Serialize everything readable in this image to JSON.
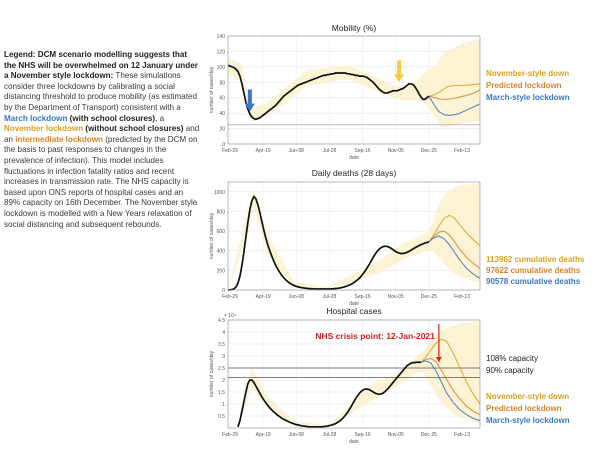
{
  "legend": {
    "label": "Legend:",
    "headline": "DCM scenario modelling suggests that the NHS will be overwhelmed on 12 January under a November style lockdown:",
    "p1": "These simulations consider three lockdowns by calibrating a social distancing threshold to produce mobility (as estimated by the Department of Transport) consistent with a",
    "march_label": "March lockdown",
    "march_note": "(with school closures)",
    "sep": ", a",
    "nov_label": "November lockdown",
    "nov_note": "(without school closures)",
    "and_an": "and an",
    "int_label": "intermediate lockdown",
    "p2": "(predicted by the DCM on the basis to past responses to changes in the prevalence of infection). This model includes fluctuations in infection fatality ratios and recent increases in transmission rate. The NHS capacity is based upon ONS reports of hospital cases and an 89% capacity on 16th December. The November style lockdown is modelled with a New Years relaxation of social distancing and subsequent rebounds."
  },
  "colors": {
    "march": "#3a78c0",
    "november": "#d8a21e",
    "predicted": "#d9822b",
    "data": "#111111",
    "band": "#fbf0cc",
    "cap_line": "#555555",
    "crisis": "#d42020"
  },
  "chart_data": [
    {
      "type": "line",
      "id": "mobility",
      "title": "Mobility (%)",
      "xlabel": "date",
      "ylabel": "number of cases/day",
      "x_ticks": [
        "Feb-29",
        "Apr-19",
        "Jun-08",
        "Jul-28",
        "Sep-16",
        "Nov-05",
        "Dec-25",
        "Feb-13"
      ],
      "ylim": [
        0,
        140
      ],
      "y_ticks": [
        0,
        20,
        40,
        60,
        80,
        100,
        120,
        140
      ],
      "observed": {
        "x": [
          0,
          3,
          6,
          9,
          12,
          15,
          18,
          21,
          24,
          27,
          30,
          33,
          36,
          39,
          42,
          45,
          48,
          51,
          54,
          57,
          60,
          63,
          66,
          69,
          72,
          75,
          78,
          81,
          84,
          87,
          90,
          93,
          96,
          99,
          102,
          105,
          108,
          111,
          114,
          117,
          120,
          123,
          126,
          129,
          132,
          135,
          138,
          141,
          144,
          147,
          150,
          153,
          156,
          159,
          162,
          165,
          168,
          171,
          174,
          177,
          180,
          183,
          186,
          189,
          192,
          195,
          198,
          201,
          204,
          207,
          210,
          213,
          216,
          219,
          222,
          225,
          228,
          231,
          234,
          237,
          240,
          243,
          246,
          249,
          252,
          255,
          258,
          261,
          264,
          267,
          270,
          273,
          276,
          279,
          282,
          285,
          288,
          291,
          294,
          297,
          300,
          303
        ],
        "y": [
          102,
          101,
          100,
          99,
          97,
          94,
          88,
          78,
          66,
          54,
          45,
          39,
          35,
          33,
          32,
          33,
          34,
          36,
          38,
          40,
          42,
          44,
          46,
          48,
          50,
          53,
          56,
          59,
          62,
          64,
          66,
          68,
          70,
          72,
          74,
          76,
          77,
          78,
          79,
          80,
          81,
          82,
          83,
          84,
          85,
          86,
          87,
          88,
          89,
          89,
          90,
          90,
          91,
          91,
          92,
          92,
          92,
          92,
          92,
          92,
          91,
          91,
          90,
          90,
          89,
          89,
          88,
          88,
          88,
          87,
          86,
          84,
          82,
          80,
          77,
          74,
          71,
          69,
          67,
          66,
          66,
          67,
          68,
          69,
          69,
          69,
          70,
          71,
          72,
          74,
          76,
          78,
          78,
          77,
          74,
          70,
          65,
          61,
          58,
          58,
          60,
          62
        ]
      },
      "band": {
        "x": [
          0,
          20,
          35,
          60,
          120,
          180,
          250,
          265,
          290,
          300,
          315,
          320,
          330,
          340,
          360,
          380
        ],
        "lower": [
          92,
          80,
          28,
          36,
          76,
          84,
          60,
          56,
          56,
          50,
          32,
          22,
          22,
          24,
          28,
          30
        ],
        "upper": [
          112,
          104,
          46,
          54,
          96,
          102,
          76,
          74,
          86,
          96,
          102,
          112,
          120,
          124,
          132,
          136
        ]
      },
      "scenarios": [
        {
          "name": "November-style down",
          "color": "#d8a21e",
          "x": [
            303,
            312,
            320,
            330,
            340,
            350,
            360,
            370,
            380
          ],
          "y": [
            62,
            64,
            68,
            74,
            76,
            76,
            76,
            77,
            78
          ]
        },
        {
          "name": "Predicted lockdown",
          "color": "#d9822b",
          "x": [
            303,
            312,
            320,
            330,
            340,
            350,
            360,
            370,
            380
          ],
          "y": [
            62,
            60,
            58,
            58,
            59,
            61,
            63,
            66,
            70
          ]
        },
        {
          "name": "March-style lockdown",
          "color": "#3a78c0",
          "x": [
            303,
            310,
            318,
            326,
            334,
            342,
            350,
            360,
            370,
            380
          ],
          "y": [
            62,
            52,
            42,
            38,
            37,
            38,
            40,
            44,
            48,
            52
          ]
        }
      ],
      "ref_lines": [
        {
          "y": 25,
          "color": "#aaaaaa"
        }
      ]
    },
    {
      "type": "line",
      "id": "deaths",
      "title": "Daily deaths (28 days)",
      "xlabel": "date",
      "ylabel": "number of cases/day",
      "x_ticks": [
        "Feb-29",
        "Apr-19",
        "Jun-08",
        "Jul-28",
        "Sep-16",
        "Nov-05",
        "Dec-25",
        "Feb-13"
      ],
      "ylim": [
        0,
        1100
      ],
      "y_ticks": [
        0,
        200,
        400,
        600,
        800,
        1000
      ],
      "observed": {
        "x": [
          0,
          3,
          6,
          9,
          12,
          15,
          18,
          21,
          24,
          27,
          30,
          33,
          36,
          39,
          42,
          45,
          48,
          51,
          54,
          57,
          60,
          63,
          66,
          69,
          72,
          75,
          78,
          81,
          84,
          87,
          90,
          93,
          96,
          99,
          102,
          105,
          108,
          111,
          114,
          117,
          120,
          123,
          126,
          129,
          132,
          135,
          138,
          141,
          144,
          147,
          150,
          153,
          156,
          159,
          162,
          165,
          168,
          171,
          174,
          177,
          180,
          183,
          186,
          189,
          192,
          195,
          198,
          201,
          204,
          207,
          210,
          213,
          216,
          219,
          222,
          225,
          228,
          231,
          234,
          237,
          240,
          243,
          246,
          249,
          252,
          255,
          258,
          261,
          264,
          267,
          270,
          273,
          276,
          279,
          282,
          285,
          288,
          291,
          294,
          297,
          300,
          303
        ],
        "y": [
          0,
          2,
          5,
          12,
          30,
          70,
          140,
          250,
          390,
          540,
          690,
          820,
          910,
          950,
          930,
          870,
          790,
          700,
          610,
          530,
          460,
          400,
          345,
          295,
          250,
          212,
          180,
          150,
          125,
          104,
          86,
          70,
          58,
          48,
          40,
          33,
          28,
          24,
          21,
          18,
          16,
          14,
          13,
          12,
          11,
          10,
          10,
          10,
          10,
          10,
          10,
          11,
          12,
          13,
          15,
          17,
          20,
          24,
          29,
          35,
          42,
          50,
          60,
          72,
          86,
          102,
          120,
          142,
          168,
          196,
          228,
          262,
          298,
          334,
          366,
          394,
          416,
          432,
          442,
          446,
          444,
          436,
          424,
          410,
          396,
          384,
          376,
          372,
          372,
          376,
          384,
          394,
          406,
          418,
          430,
          442,
          452,
          462,
          470,
          478,
          484,
          490
        ]
      },
      "band": {
        "x": [
          0,
          30,
          39,
          60,
          100,
          150,
          230,
          265,
          290,
          300,
          310,
          318,
          330,
          345,
          365,
          380
        ],
        "lower": [
          0,
          580,
          840,
          360,
          30,
          5,
          180,
          320,
          380,
          400,
          400,
          330,
          240,
          150,
          100,
          80
        ],
        "upper": [
          10,
          800,
          1000,
          560,
          80,
          30,
          300,
          480,
          540,
          600,
          700,
          880,
          1000,
          1060,
          1080,
          1090
        ]
      },
      "scenarios": [
        {
          "name": "113962 cumulative deaths",
          "color": "#d8a21e",
          "x": [
            303,
            310,
            318,
            326,
            334,
            342,
            350,
            360,
            370,
            380
          ],
          "y": [
            490,
            560,
            650,
            730,
            760,
            730,
            660,
            580,
            510,
            450
          ]
        },
        {
          "name": "97622 cumulative deaths",
          "color": "#d9822b",
          "x": [
            303,
            310,
            318,
            326,
            334,
            342,
            350,
            360,
            370,
            380
          ],
          "y": [
            490,
            540,
            590,
            600,
            560,
            490,
            410,
            330,
            270,
            220
          ]
        },
        {
          "name": "90578 cumulative deaths",
          "color": "#3a78c0",
          "x": [
            303,
            310,
            318,
            326,
            334,
            342,
            350,
            360,
            370,
            380
          ],
          "y": [
            490,
            530,
            550,
            520,
            460,
            380,
            300,
            220,
            160,
            120
          ]
        }
      ],
      "ref_lines": []
    },
    {
      "type": "line",
      "id": "hospital",
      "title": "Hospital cases",
      "xlabel": "date",
      "ylabel": "number of cases/day",
      "y_exponent": "× 10⁴",
      "x_ticks": [
        "Feb-29",
        "Apr-19",
        "Jun-08",
        "Jul-28",
        "Sep-16",
        "Nov-05",
        "Dec-25",
        "Feb-13"
      ],
      "ylim": [
        0,
        4.5
      ],
      "y_ticks": [
        0.5,
        1,
        1.5,
        2,
        2.5,
        3,
        3.5,
        4,
        4.5
      ],
      "observed": {
        "x": [
          15,
          18,
          21,
          24,
          27,
          30,
          33,
          36,
          39,
          42,
          45,
          48,
          51,
          54,
          57,
          60,
          63,
          66,
          69,
          72,
          75,
          78,
          81,
          84,
          87,
          90,
          93,
          96,
          99,
          102,
          105,
          108,
          111,
          114,
          117,
          120,
          123,
          126,
          129,
          132,
          135,
          138,
          141,
          144,
          147,
          150,
          153,
          156,
          159,
          162,
          165,
          168,
          171,
          174,
          177,
          180,
          183,
          186,
          189,
          192,
          195,
          198,
          201,
          204,
          207,
          210,
          213,
          216,
          219,
          222,
          225,
          228,
          231,
          234,
          237,
          240,
          243,
          246,
          249,
          252,
          255,
          258,
          261,
          264,
          267,
          270,
          273,
          276,
          279,
          282,
          285,
          288,
          291
        ],
        "y": [
          0.05,
          0.3,
          0.7,
          1.1,
          1.5,
          1.85,
          2.0,
          2.0,
          1.9,
          1.75,
          1.6,
          1.45,
          1.3,
          1.17,
          1.05,
          0.94,
          0.84,
          0.75,
          0.67,
          0.6,
          0.53,
          0.47,
          0.41,
          0.36,
          0.32,
          0.28,
          0.24,
          0.21,
          0.18,
          0.15,
          0.13,
          0.11,
          0.09,
          0.08,
          0.07,
          0.06,
          0.05,
          0.05,
          0.05,
          0.05,
          0.05,
          0.05,
          0.05,
          0.06,
          0.07,
          0.08,
          0.1,
          0.12,
          0.15,
          0.18,
          0.23,
          0.28,
          0.35,
          0.43,
          0.53,
          0.64,
          0.77,
          0.91,
          1.06,
          1.2,
          1.33,
          1.44,
          1.53,
          1.59,
          1.62,
          1.62,
          1.6,
          1.55,
          1.5,
          1.45,
          1.42,
          1.41,
          1.42,
          1.46,
          1.52,
          1.6,
          1.7,
          1.8,
          1.9,
          2.0,
          2.1,
          2.2,
          2.3,
          2.4,
          2.5,
          2.6,
          2.65,
          2.7,
          2.72,
          2.73,
          2.74,
          2.74,
          2.74
        ]
      },
      "band": {
        "x": [
          15,
          36,
          60,
          100,
          150,
          220,
          260,
          285,
          295,
          305,
          318,
          330,
          345,
          365,
          380
        ],
        "lower": [
          0,
          1.7,
          0.8,
          0.1,
          0.03,
          1.2,
          1.8,
          2.3,
          2.3,
          1.8,
          1.2,
          0.8,
          0.5,
          0.3,
          0.2
        ],
        "upper": [
          0.2,
          2.5,
          1.3,
          0.3,
          0.1,
          1.9,
          2.3,
          3.0,
          3.2,
          3.6,
          4.0,
          4.2,
          4.3,
          4.4,
          4.5
        ]
      },
      "scenarios": [
        {
          "name": "November-style down",
          "color": "#d8a21e",
          "x": [
            291,
            298,
            306,
            314,
            322,
            330,
            340,
            350,
            360,
            370,
            380
          ],
          "y": [
            2.74,
            2.95,
            3.25,
            3.55,
            3.7,
            3.6,
            3.1,
            2.5,
            1.9,
            1.4,
            1.0
          ]
        },
        {
          "name": "Predicted lockdown",
          "color": "#d9822b",
          "x": [
            291,
            298,
            306,
            314,
            322,
            330,
            340,
            350,
            360,
            370,
            380
          ],
          "y": [
            2.74,
            2.85,
            2.9,
            2.75,
            2.4,
            2.0,
            1.55,
            1.2,
            0.9,
            0.7,
            0.55
          ]
        },
        {
          "name": "March-style lockdown",
          "color": "#3a78c0",
          "x": [
            291,
            298,
            306,
            314,
            322,
            330,
            340,
            350,
            360,
            370,
            380
          ],
          "y": [
            2.74,
            2.8,
            2.7,
            2.35,
            1.9,
            1.45,
            1.05,
            0.75,
            0.55,
            0.4,
            0.3
          ]
        }
      ],
      "ref_lines": [
        {
          "y": 2.5,
          "color": "#555555",
          "label": "108% capacity"
        },
        {
          "y": 2.1,
          "color": "#555555",
          "label": "90% capacity"
        }
      ],
      "annotation": {
        "text": "NHS crisis point: 12-Jan-2021",
        "x": 318
      }
    }
  ]
}
